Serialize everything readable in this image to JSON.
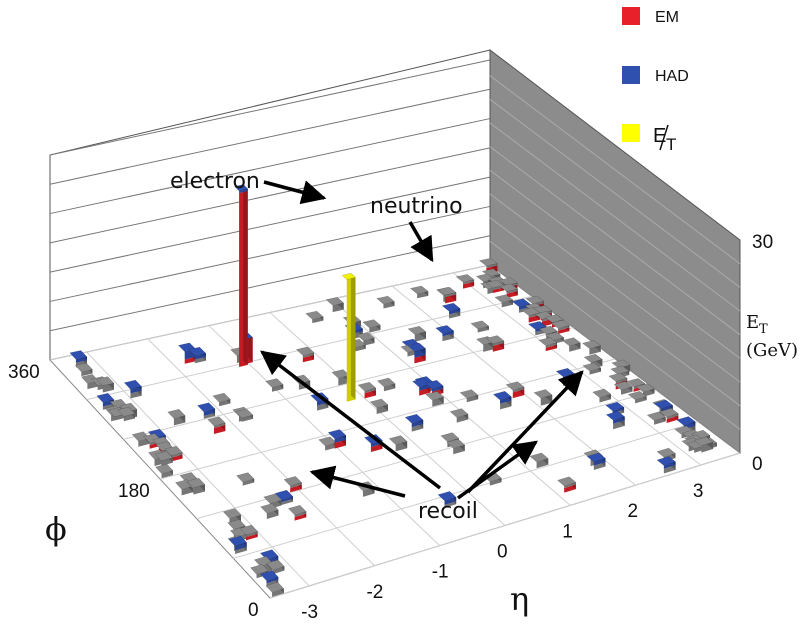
{
  "chart_data": {
    "type": "lego-plot-3d",
    "x_axis": {
      "label": "η",
      "ticks": [
        "-3",
        "-2",
        "-1",
        "0",
        "1",
        "2",
        "3"
      ],
      "range": [
        -3.6,
        3.6
      ]
    },
    "y_axis": {
      "label": "ϕ",
      "ticks": [
        "0",
        "180",
        "360"
      ],
      "range": [
        0,
        360
      ]
    },
    "z_axis": {
      "label": "E",
      "label_sub": "T",
      "unit": "(GeV)",
      "ticks": [
        "0",
        "30"
      ],
      "range": [
        0,
        30
      ]
    },
    "legend": [
      {
        "name": "EM",
        "color": "#e8202a"
      },
      {
        "name": "HAD",
        "color": "#3050b0"
      },
      {
        "name": "E",
        "sub": "T",
        "slashed": true,
        "color": "#ffff00"
      }
    ],
    "annotations": [
      {
        "text": "electron",
        "points_to": "electron-tower"
      },
      {
        "text": "neutrino",
        "points_to": "missing-et-bar"
      },
      {
        "text": "recoil",
        "points_to": "recoil-towers"
      }
    ],
    "towers": [
      {
        "name": "electron-tower",
        "eta": -1.1,
        "phi": 300,
        "em": 24.5,
        "had": 0.3
      },
      {
        "name": "electron-secondary",
        "eta": -1.0,
        "phi": 302,
        "em": 3.5,
        "had": 0.0
      },
      {
        "name": "missing-et-bar",
        "eta": -0.2,
        "phi": 220,
        "met": 17.2
      },
      {
        "name": "recoil-1",
        "eta": -1.75,
        "phi": 322,
        "em": 0.6,
        "had": 1.1
      },
      {
        "name": "recoil-2",
        "eta": -0.95,
        "phi": 165,
        "em": 0.8,
        "had": 0.6
      },
      {
        "name": "recoil-3",
        "eta": -0.55,
        "phi": 148,
        "em": 0.7,
        "had": 0.5
      },
      {
        "name": "recoil-4",
        "eta": 1.2,
        "phi": 250,
        "em": 0.8,
        "had": 0.9
      },
      {
        "name": "recoil-5",
        "eta": 0.8,
        "phi": 205,
        "em": 0.7,
        "had": 0.5
      },
      {
        "name": "recoil-6",
        "eta": 0.95,
        "phi": 200,
        "em": 0.6,
        "had": 0.4
      }
    ],
    "noise_towers_count": 150
  }
}
